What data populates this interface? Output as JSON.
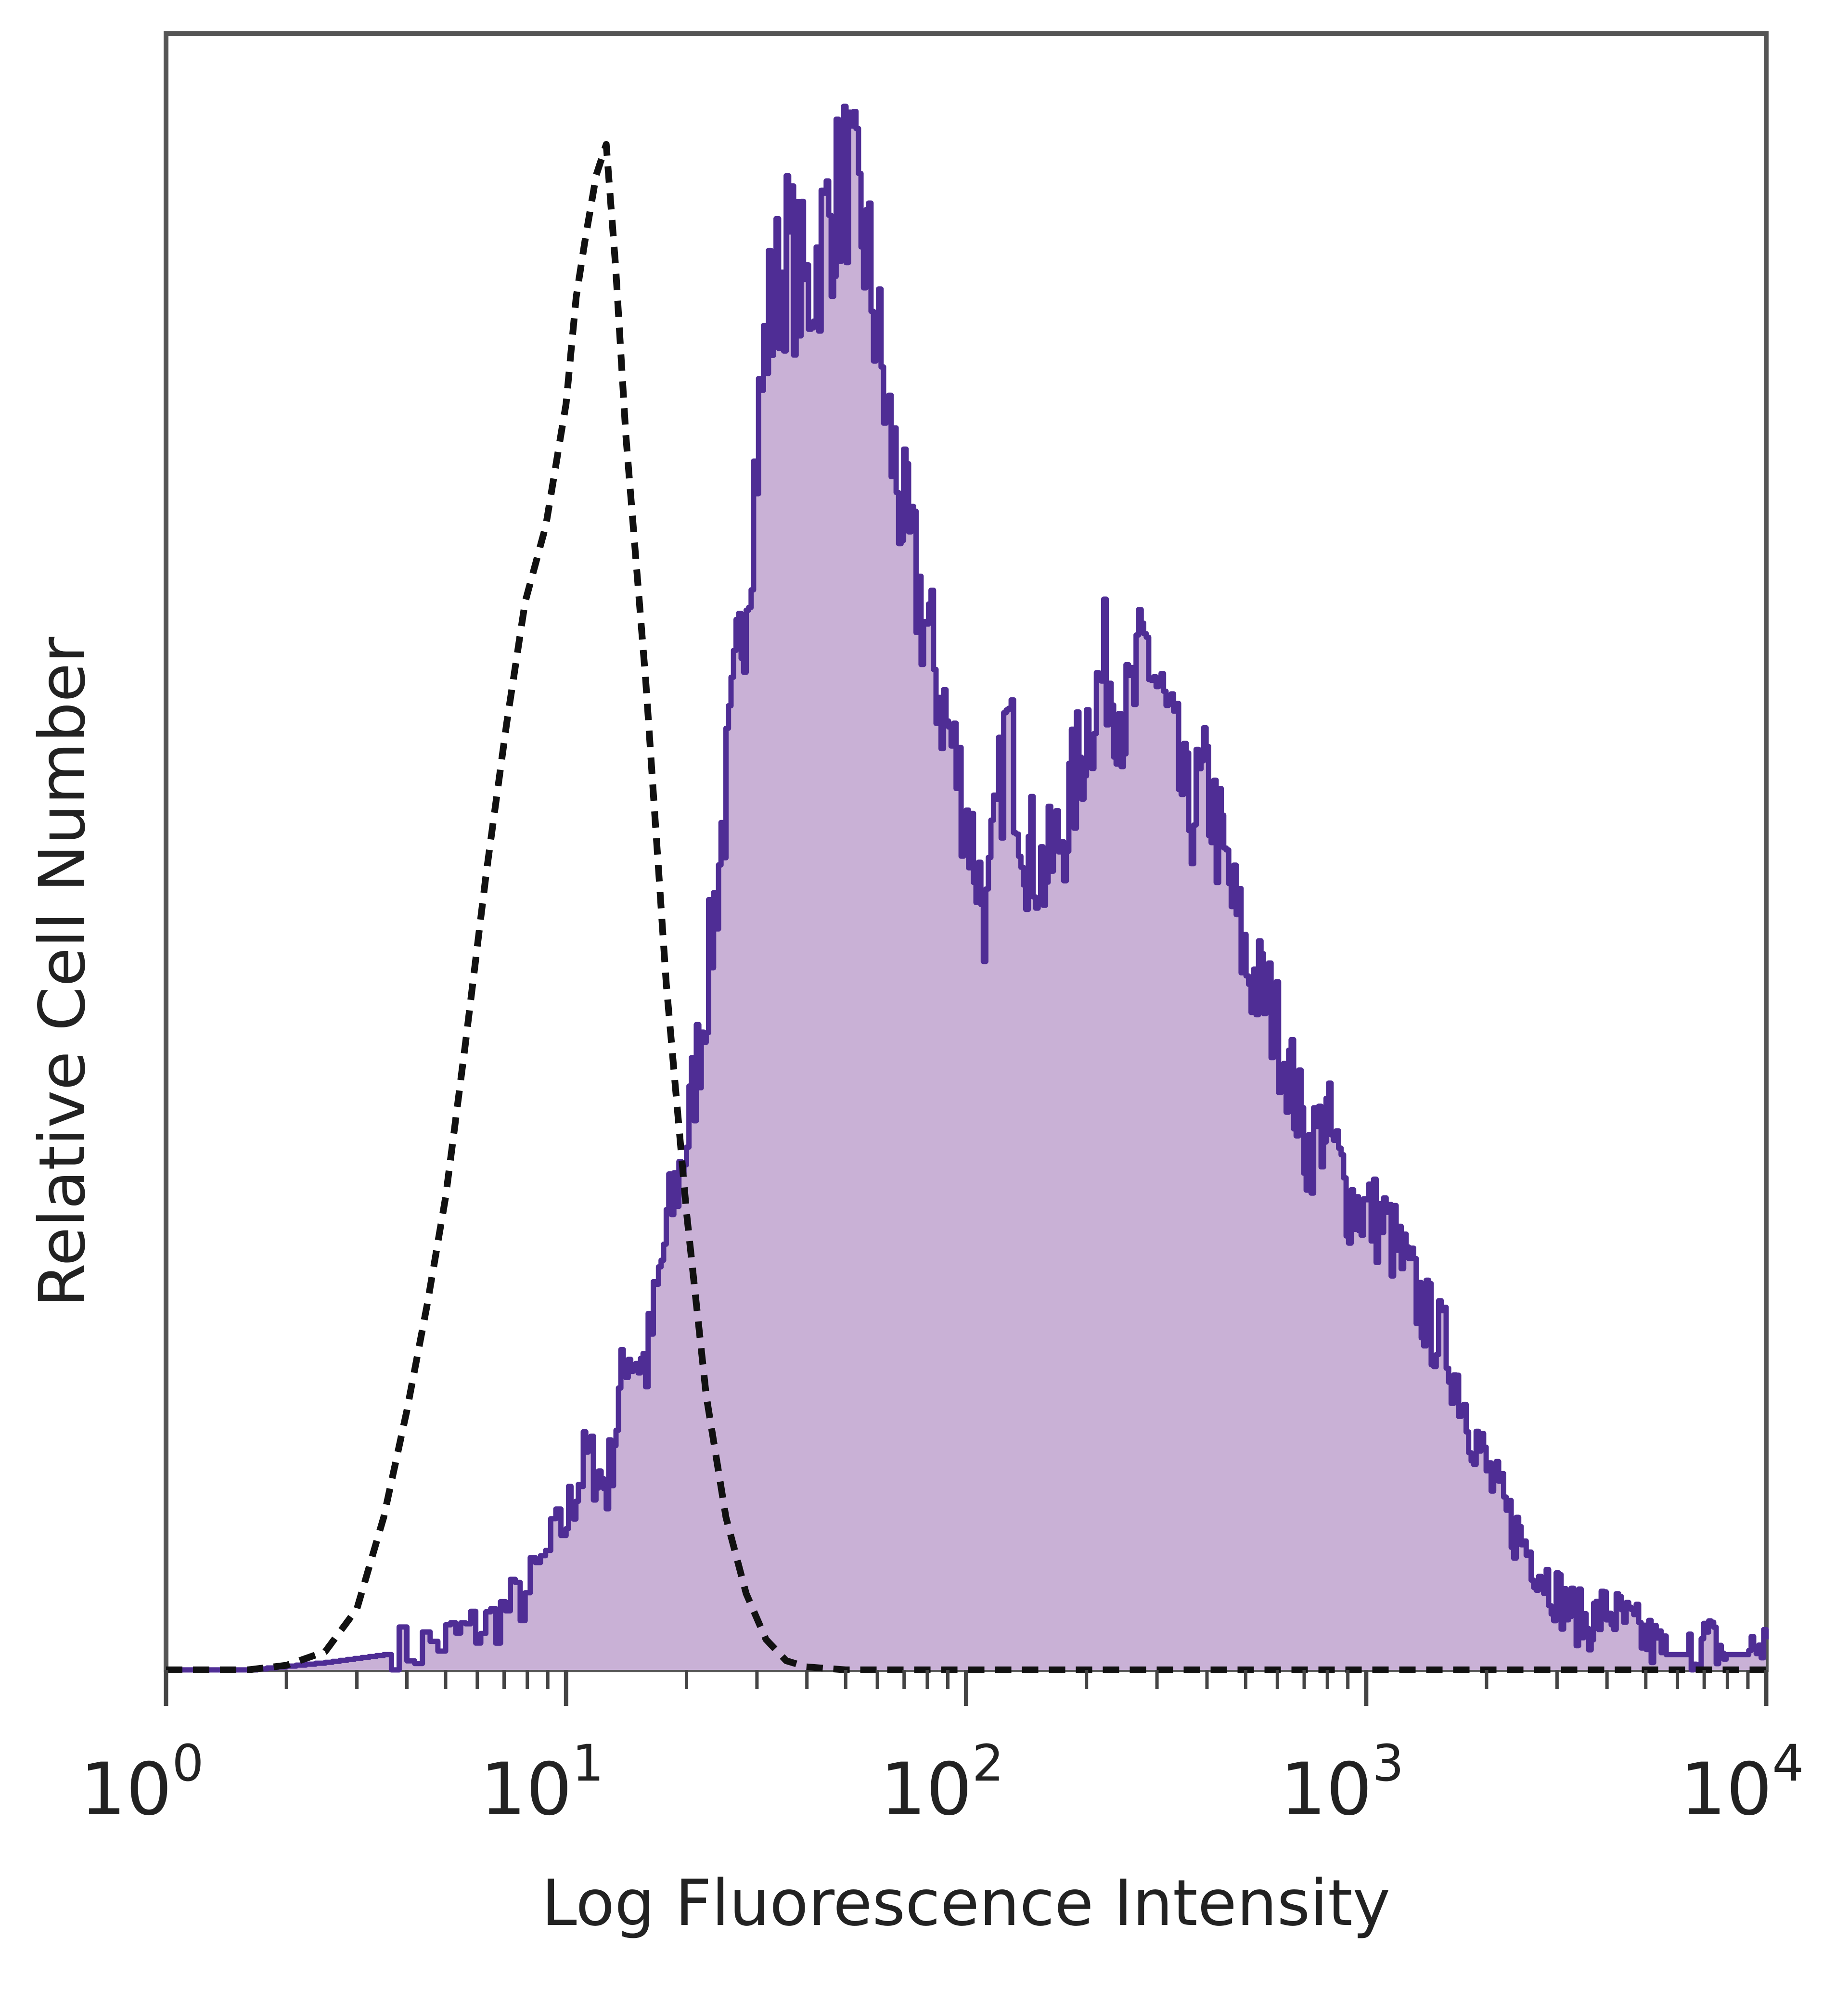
{
  "chart_data": {
    "type": "area",
    "title": "",
    "xlabel": "Log Fluorescence Intensity",
    "ylabel": "Relative Cell Number",
    "x_scale": "log",
    "xlim": [
      1,
      10000
    ],
    "ylim": [
      0,
      1
    ],
    "grid": false,
    "legend": "none",
    "x_ticks": [
      {
        "base": "10",
        "exp": "0",
        "value": 1
      },
      {
        "base": "10",
        "exp": "1",
        "value": 10
      },
      {
        "base": "10",
        "exp": "2",
        "value": 100
      },
      {
        "base": "10",
        "exp": "3",
        "value": 1000
      },
      {
        "base": "10",
        "exp": "4",
        "value": 10000
      }
    ],
    "series": [
      {
        "style": "filled",
        "fill_color": "#c9b1d6",
        "line_color": "#4f2d95",
        "x": [
          1,
          1.6,
          2.5,
          3.5,
          5,
          6.3,
          7.9,
          10,
          11.2,
          12.6,
          14.1,
          15.8,
          17.8,
          20,
          22.4,
          25.1,
          28.2,
          31.6,
          35.5,
          39.8,
          44.7,
          50.1,
          56.2,
          63.1,
          70.8,
          79.4,
          89.1,
          100,
          112,
          126,
          141,
          158,
          178,
          200,
          224,
          251,
          282,
          316,
          355,
          398,
          447,
          501,
          562,
          631,
          708,
          794,
          891,
          1000,
          1122,
          1259,
          1413,
          1585,
          1778,
          1995,
          2239,
          2512,
          2818,
          3162,
          3548,
          3981,
          4467,
          5012,
          5623,
          6310,
          7079,
          7943,
          8913,
          10000
        ],
        "y": [
          0.0,
          0.0,
          0.005,
          0.01,
          0.02,
          0.03,
          0.05,
          0.1,
          0.14,
          0.12,
          0.21,
          0.2,
          0.29,
          0.35,
          0.45,
          0.58,
          0.72,
          0.88,
          0.93,
          0.9,
          0.95,
          0.98,
          0.93,
          0.82,
          0.74,
          0.68,
          0.62,
          0.56,
          0.49,
          0.62,
          0.54,
          0.52,
          0.56,
          0.62,
          0.66,
          0.62,
          0.67,
          0.62,
          0.56,
          0.58,
          0.52,
          0.46,
          0.44,
          0.4,
          0.34,
          0.36,
          0.31,
          0.3,
          0.29,
          0.26,
          0.23,
          0.21,
          0.17,
          0.13,
          0.1,
          0.08,
          0.06,
          0.04,
          0.03,
          0.04,
          0.03,
          0.02,
          0.01,
          0.01,
          0.02,
          0.01,
          0.01,
          0.02
        ]
      },
      {
        "style": "dashed",
        "line_color": "#111111",
        "x": [
          1,
          1.6,
          2,
          2.5,
          3,
          3.5,
          4,
          4.5,
          5,
          5.6,
          6.3,
          7.1,
          7.9,
          8.9,
          10,
          10.6,
          11.2,
          11.9,
          12.6,
          13.3,
          14.1,
          15.8,
          17.8,
          20,
          22.4,
          25.1,
          28.2,
          31.6,
          35.5,
          39.8,
          50,
          100,
          1000,
          10000
        ],
        "y": [
          0.0,
          0.0,
          0.003,
          0.012,
          0.04,
          0.1,
          0.17,
          0.24,
          0.31,
          0.41,
          0.52,
          0.62,
          0.7,
          0.75,
          0.83,
          0.9,
          0.94,
          0.98,
          1.0,
          0.92,
          0.81,
          0.65,
          0.45,
          0.3,
          0.18,
          0.1,
          0.05,
          0.02,
          0.006,
          0.002,
          0.0,
          0.0,
          0.0,
          0.0
        ]
      }
    ]
  }
}
